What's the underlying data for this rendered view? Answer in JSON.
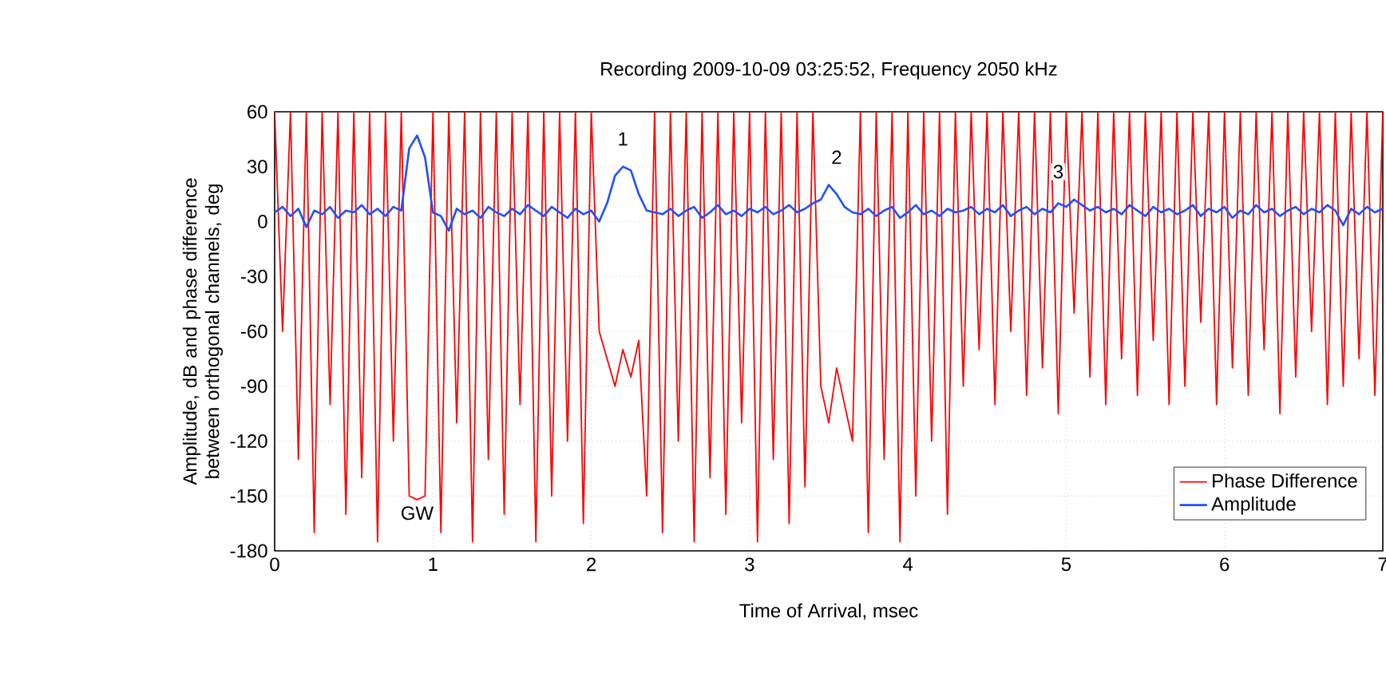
{
  "chart_data": {
    "type": "line",
    "title": "Recording 2009-10-09 03:25:52, Frequency 2050 kHz",
    "xlabel": "Time of Arrival, msec",
    "ylabel": "Amplitude, dB and phase difference between orthogonal channels, deg",
    "x": [
      0,
      0.05,
      0.1,
      0.15,
      0.2,
      0.25,
      0.3,
      0.35,
      0.4,
      0.45,
      0.5,
      0.55,
      0.6,
      0.65,
      0.7,
      0.75,
      0.8,
      0.85,
      0.9,
      0.95,
      1.0,
      1.05,
      1.1,
      1.15,
      1.2,
      1.25,
      1.3,
      1.35,
      1.4,
      1.45,
      1.5,
      1.55,
      1.6,
      1.65,
      1.7,
      1.75,
      1.8,
      1.85,
      1.9,
      1.95,
      2.0,
      2.05,
      2.1,
      2.15,
      2.2,
      2.25,
      2.3,
      2.35,
      2.4,
      2.45,
      2.5,
      2.55,
      2.6,
      2.65,
      2.7,
      2.75,
      2.8,
      2.85,
      2.9,
      2.95,
      3.0,
      3.05,
      3.1,
      3.15,
      3.2,
      3.25,
      3.3,
      3.35,
      3.4,
      3.45,
      3.5,
      3.55,
      3.6,
      3.65,
      3.7,
      3.75,
      3.8,
      3.85,
      3.9,
      3.95,
      4.0,
      4.05,
      4.1,
      4.15,
      4.2,
      4.25,
      4.3,
      4.35,
      4.4,
      4.45,
      4.5,
      4.55,
      4.6,
      4.65,
      4.7,
      4.75,
      4.8,
      4.85,
      4.9,
      4.95,
      5.0,
      5.05,
      5.1,
      5.15,
      5.2,
      5.25,
      5.3,
      5.35,
      5.4,
      5.45,
      5.5,
      5.55,
      5.6,
      5.65,
      5.7,
      5.75,
      5.8,
      5.85,
      5.9,
      5.95,
      6.0,
      6.05,
      6.1,
      6.15,
      6.2,
      6.25,
      6.3,
      6.35,
      6.4,
      6.45,
      6.5,
      6.55,
      6.6,
      6.65,
      6.7,
      6.75,
      6.8,
      6.85,
      6.9,
      6.95,
      7.0
    ],
    "series": [
      {
        "name": "Phase Difference",
        "color": "#ff0000",
        "values": [
          60,
          -60,
          60,
          -130,
          60,
          -170,
          60,
          -100,
          60,
          -160,
          60,
          -140,
          60,
          -175,
          60,
          -120,
          60,
          -150,
          -152,
          -150,
          60,
          -170,
          60,
          -110,
          60,
          -175,
          60,
          -130,
          60,
          -160,
          60,
          -100,
          60,
          -175,
          60,
          -150,
          60,
          -120,
          60,
          -165,
          60,
          -60,
          -75,
          -90,
          -70,
          -85,
          -65,
          -150,
          60,
          -170,
          60,
          -120,
          60,
          -175,
          60,
          -140,
          60,
          -160,
          60,
          -110,
          60,
          -175,
          60,
          -130,
          60,
          -165,
          60,
          -145,
          60,
          -90,
          -110,
          -80,
          -100,
          -120,
          60,
          -170,
          60,
          -130,
          60,
          -175,
          60,
          -150,
          60,
          -120,
          60,
          -160,
          60,
          -90,
          60,
          -70,
          60,
          -100,
          60,
          -60,
          60,
          -95,
          60,
          -80,
          60,
          -105,
          60,
          -50,
          60,
          -85,
          60,
          -100,
          60,
          -75,
          60,
          -95,
          60,
          -65,
          60,
          -100,
          60,
          -90,
          60,
          -55,
          60,
          -100,
          60,
          -80,
          60,
          -95,
          60,
          -70,
          60,
          -105,
          60,
          -85,
          60,
          -60,
          60,
          -100,
          60,
          -90,
          60,
          -75,
          60,
          -95,
          60
        ]
      },
      {
        "name": "Amplitude",
        "color": "#1f4fff",
        "values": [
          5,
          8,
          3,
          7,
          -3,
          6,
          4,
          8,
          2,
          6,
          5,
          9,
          4,
          7,
          3,
          8,
          6,
          40,
          47,
          35,
          5,
          3,
          -5,
          7,
          4,
          6,
          2,
          8,
          5,
          3,
          7,
          4,
          9,
          6,
          3,
          8,
          5,
          2,
          7,
          4,
          6,
          0,
          10,
          25,
          30,
          28,
          15,
          6,
          5,
          4,
          7,
          3,
          6,
          8,
          2,
          5,
          9,
          4,
          6,
          3,
          7,
          5,
          8,
          4,
          6,
          9,
          5,
          7,
          10,
          12,
          20,
          15,
          8,
          5,
          4,
          7,
          3,
          6,
          8,
          2,
          5,
          9,
          4,
          6,
          3,
          7,
          5,
          6,
          8,
          4,
          7,
          5,
          9,
          3,
          6,
          8,
          4,
          7,
          5,
          10,
          8,
          12,
          9,
          6,
          8,
          5,
          7,
          4,
          9,
          6,
          3,
          8,
          5,
          7,
          4,
          6,
          9,
          3,
          7,
          5,
          8,
          2,
          6,
          4,
          9,
          5,
          7,
          3,
          6,
          8,
          4,
          7,
          5,
          9,
          6,
          -2,
          7,
          4,
          8,
          5,
          7
        ]
      }
    ],
    "annotations": [
      {
        "text": "GW",
        "x": 0.9,
        "y": -152
      },
      {
        "text": "1",
        "x": 2.2,
        "y": 30
      },
      {
        "text": "2",
        "x": 3.55,
        "y": 20
      },
      {
        "text": "3",
        "x": 4.95,
        "y": 12
      }
    ],
    "xlim": [
      0,
      7
    ],
    "ylim": [
      -180,
      60
    ],
    "xticks": [
      0,
      1,
      2,
      3,
      4,
      5,
      6,
      7
    ],
    "yticks": [
      -180,
      -150,
      -120,
      -90,
      -60,
      -30,
      0,
      30,
      60
    ],
    "grid": true,
    "legend": "bottom right",
    "marker": "none",
    "line_style": "solid"
  }
}
